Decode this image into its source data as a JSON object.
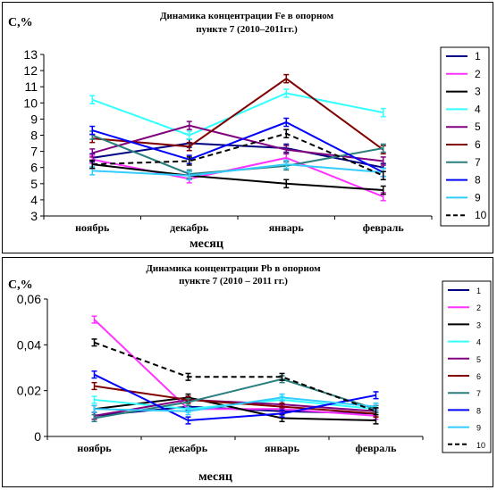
{
  "colors": {
    "s1": "#000080",
    "s2": "#ff33ff",
    "s3": "#000000",
    "s4": "#33ffff",
    "s5": "#800080",
    "s6": "#800000",
    "s7": "#2a7f7f",
    "s8": "#0000ff",
    "s9": "#33ccff",
    "s10": "#000000"
  },
  "chart_data": [
    {
      "type": "line",
      "title_line1": "Динамика концентрации Fe в опорном",
      "title_line2": "пункте 7 (2010–2011гг.)",
      "xlabel": "месяц",
      "ylabel": "C,%",
      "categories": [
        "ноябрь",
        "декабрь",
        "январь",
        "февраль"
      ],
      "ylim": [
        3,
        13
      ],
      "yticks": [
        "3",
        "4",
        "5",
        "6",
        "7",
        "8",
        "9",
        "10",
        "11",
        "12",
        "13"
      ],
      "legend_placement": "right",
      "series": [
        {
          "name": "1",
          "values": [
            6.6,
            7.5,
            7.2,
            6.0
          ]
        },
        {
          "name": "2",
          "values": [
            6.5,
            5.3,
            6.6,
            4.2
          ]
        },
        {
          "name": "3",
          "values": [
            6.2,
            5.5,
            5.0,
            4.6
          ]
        },
        {
          "name": "4",
          "values": [
            10.2,
            8.0,
            10.6,
            9.4
          ]
        },
        {
          "name": "5",
          "values": [
            6.9,
            8.6,
            7.1,
            6.4
          ]
        },
        {
          "name": "6",
          "values": [
            7.8,
            7.3,
            11.5,
            7.1
          ]
        },
        {
          "name": "7",
          "values": [
            8.0,
            5.6,
            6.1,
            7.2
          ]
        },
        {
          "name": "8",
          "values": [
            8.3,
            6.5,
            8.8,
            5.7
          ]
        },
        {
          "name": "9",
          "values": [
            5.8,
            5.5,
            6.2,
            5.7
          ]
        },
        {
          "name": "10",
          "values": [
            6.2,
            6.4,
            8.1,
            5.5
          ]
        }
      ]
    },
    {
      "type": "line",
      "title_line1": "Динамика концентрации Pb в опорном",
      "title_line2": "пункте 7 (2010 – 2011 гг.)",
      "xlabel": "месяц",
      "ylabel": "C,%",
      "categories": [
        "ноябрь",
        "декабрь",
        "январь",
        "февраль"
      ],
      "ylim": [
        0,
        0.06
      ],
      "yticks": [
        "0",
        "0,02",
        "0,04",
        "0,06"
      ],
      "legend_placement": "right",
      "series": [
        {
          "name": "1",
          "values": [
            0.009,
            0.013,
            0.011,
            0.01
          ]
        },
        {
          "name": "2",
          "values": [
            0.051,
            0.012,
            0.012,
            0.009
          ]
        },
        {
          "name": "3",
          "values": [
            0.012,
            0.017,
            0.008,
            0.007
          ]
        },
        {
          "name": "4",
          "values": [
            0.016,
            0.012,
            0.016,
            0.012
          ]
        },
        {
          "name": "5",
          "values": [
            0.009,
            0.016,
            0.014,
            0.011
          ]
        },
        {
          "name": "6",
          "values": [
            0.022,
            0.016,
            0.013,
            0.01
          ]
        },
        {
          "name": "7",
          "values": [
            0.008,
            0.015,
            0.025,
            0.012
          ]
        },
        {
          "name": "8",
          "values": [
            0.027,
            0.007,
            0.01,
            0.018
          ]
        },
        {
          "name": "9",
          "values": [
            0.012,
            0.011,
            0.017,
            0.013
          ]
        },
        {
          "name": "10",
          "values": [
            0.041,
            0.026,
            0.026,
            0.011
          ]
        }
      ]
    }
  ]
}
